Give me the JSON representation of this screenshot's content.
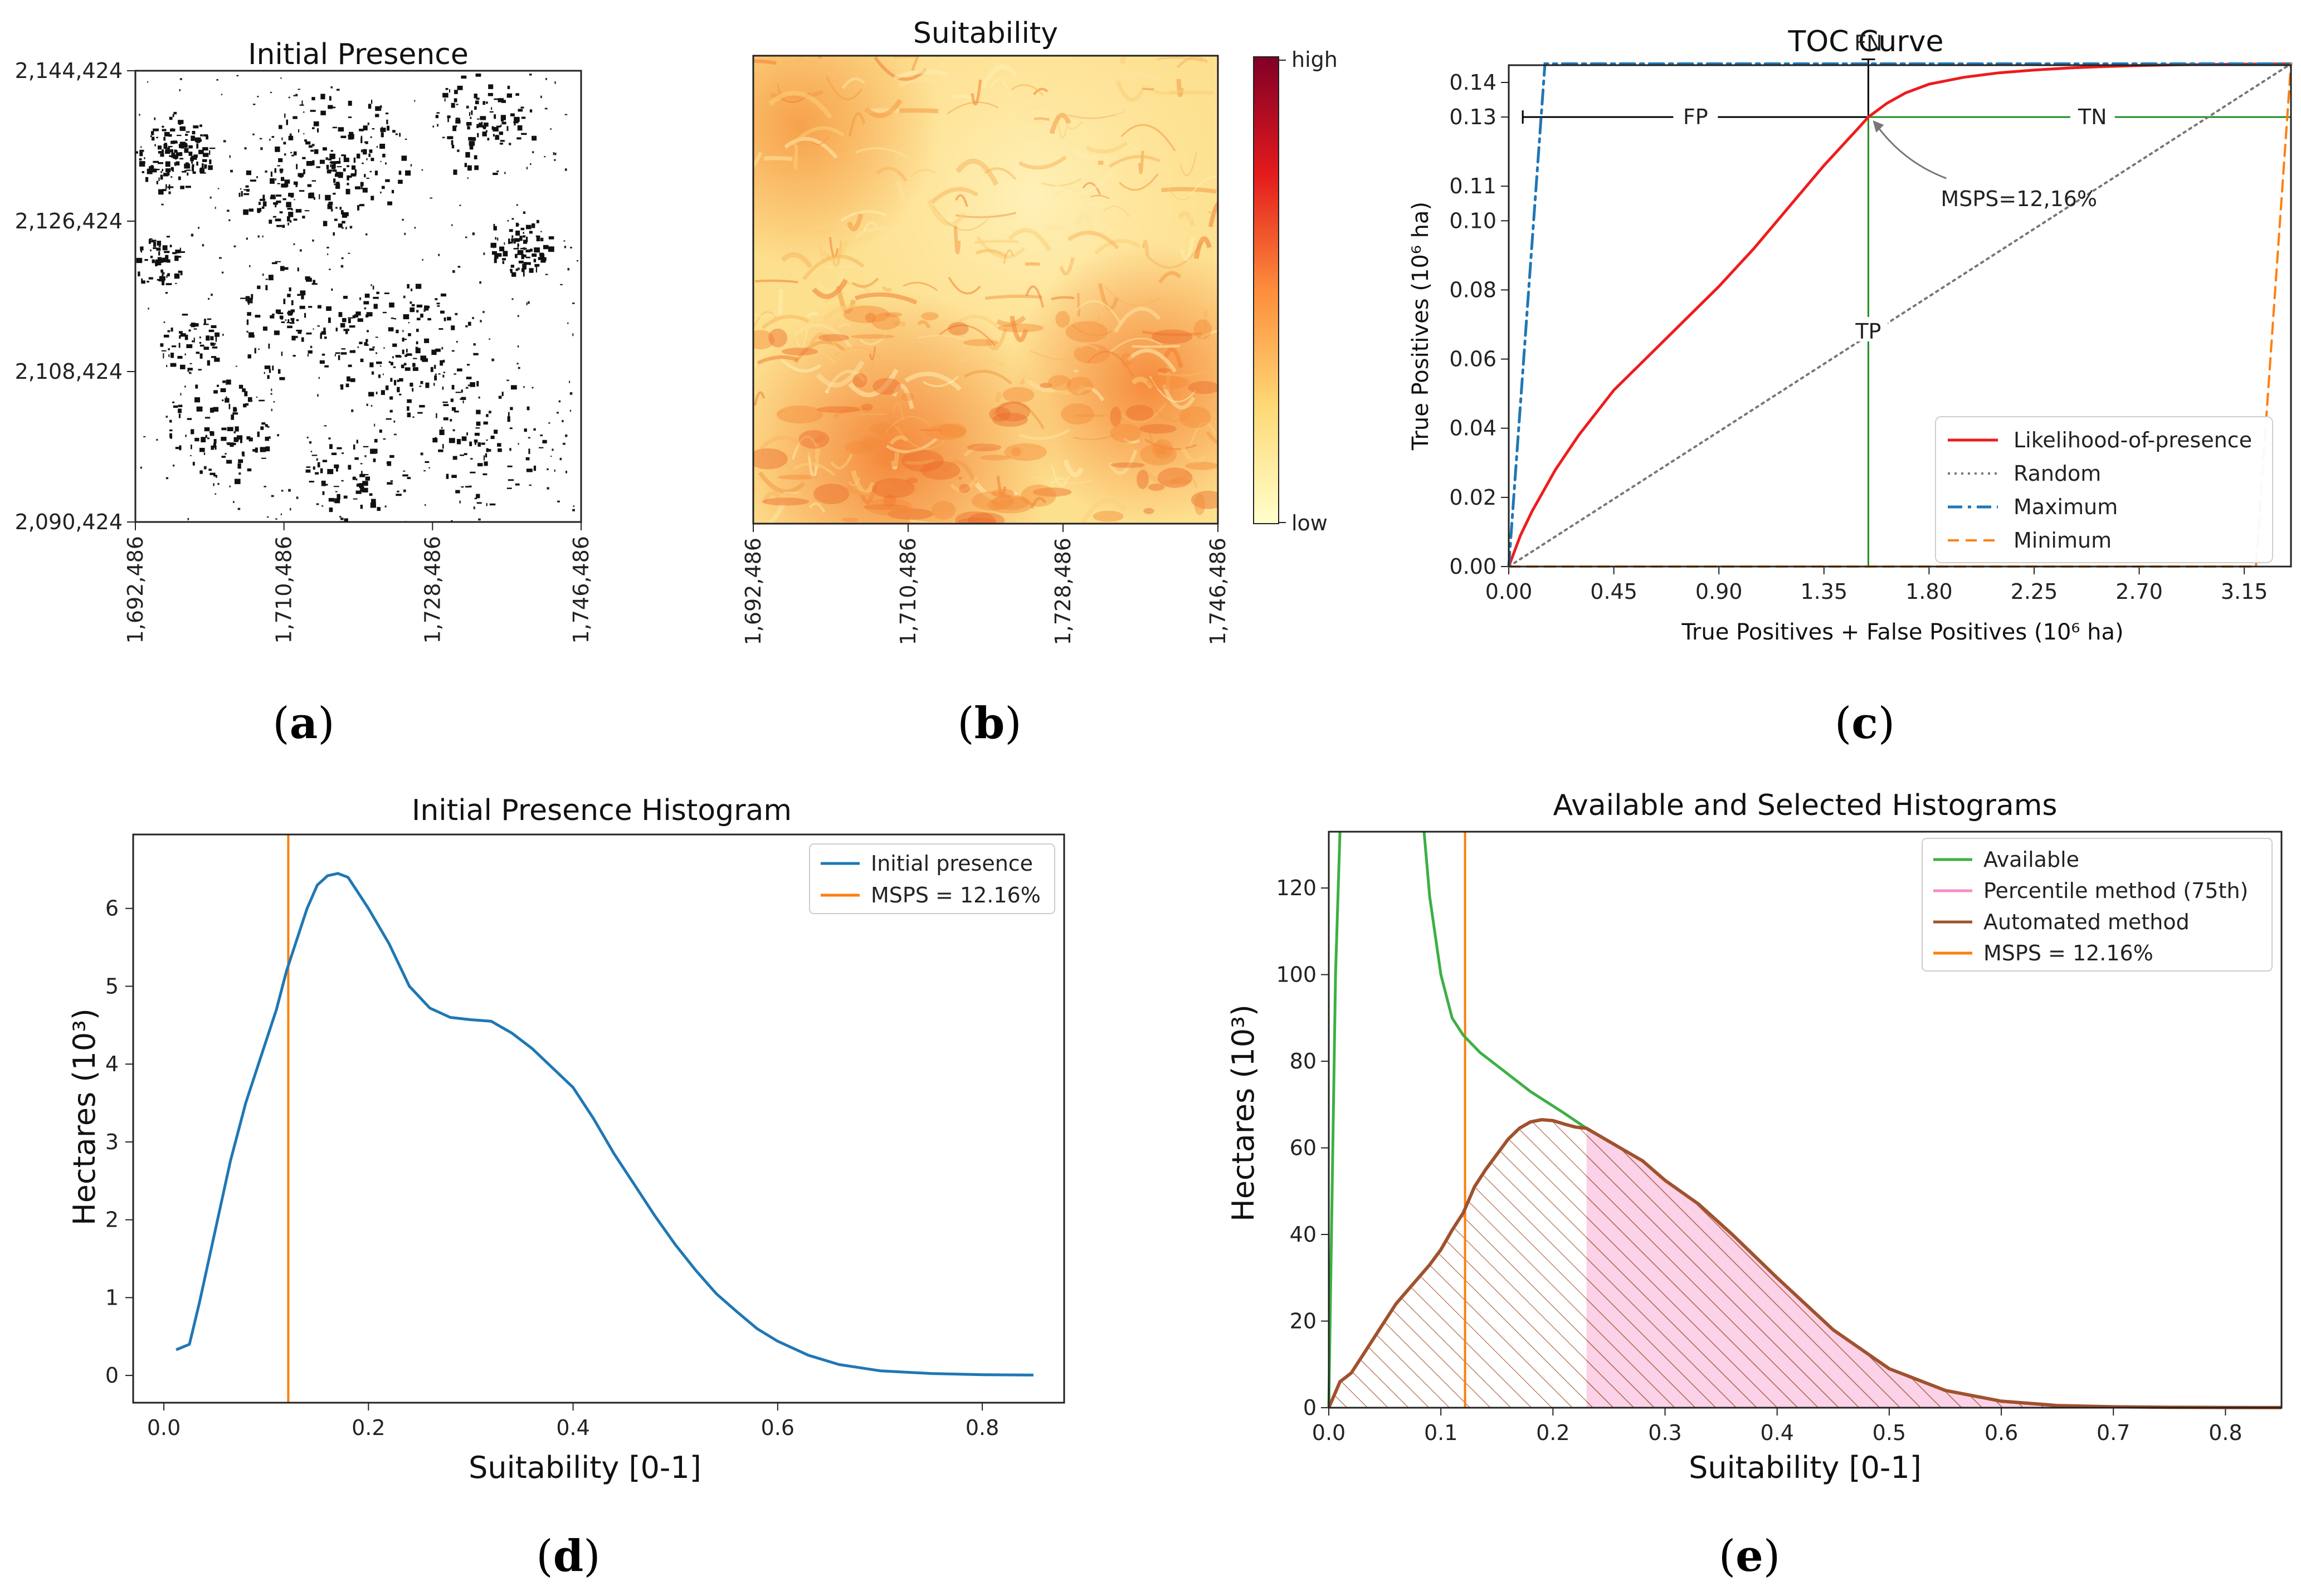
{
  "panel_labels": [
    "a",
    "b",
    "c",
    "d",
    "e"
  ],
  "colors": {
    "toc_likelihood": "#ee1c1c",
    "toc_random": "#777777",
    "toc_maximum": "#1f77b4",
    "toc_minimum": "#ff7f0e",
    "toc_annot": "#228b22",
    "hist_initial": "#1f77b4",
    "mspss": "#ff7f0e",
    "available": "#3cb043",
    "percentile": "#f48fc4",
    "automated": "#a0522d"
  },
  "chart_data": [
    {
      "type": "heatmap",
      "panel": "a",
      "title": "Initial Presence",
      "x_ticks": [
        "1,692,486",
        "1,710,486",
        "1,728,486",
        "1,746,486"
      ],
      "y_ticks": [
        "2,144,424",
        "2,126,424",
        "2,108,424",
        "2,090,424"
      ],
      "xlim": [
        1692486,
        1746486
      ],
      "ylim": [
        2090424,
        2144424
      ],
      "colormap": "binary (presence = black)"
    },
    {
      "type": "heatmap",
      "panel": "b",
      "title": "Suitability",
      "x_ticks": [
        "1,692,486",
        "1,710,486",
        "1,728,486",
        "1,746,486"
      ],
      "xlim": [
        1692486,
        1746486
      ],
      "colorbar": {
        "high_label": "high",
        "low_label": "low"
      },
      "colormap": "YlOrRd"
    },
    {
      "type": "line",
      "panel": "c",
      "title": "TOC Curve",
      "xlabel": "True Positives + False Positives (10⁶ ha)",
      "ylabel": "True Positives (10⁶ ha)",
      "xlim": [
        0,
        3.35
      ],
      "ylim": [
        0,
        0.145
      ],
      "x_ticks": [
        "0.00",
        "0.45",
        "0.90",
        "1.35",
        "1.80",
        "2.25",
        "2.70",
        "3.15"
      ],
      "y_ticks": [
        "0.00",
        "0.02",
        "0.04",
        "0.06",
        "0.08",
        "0.10",
        "0.11",
        "0.13",
        "0.14"
      ],
      "legend_position": "bottom-right",
      "series": [
        {
          "name": "Likelihood-of-presence",
          "style": "solid",
          "x": [
            0,
            0.05,
            0.1,
            0.2,
            0.3,
            0.45,
            0.6,
            0.75,
            0.9,
            1.05,
            1.2,
            1.35,
            1.5,
            1.54,
            1.62,
            1.7,
            1.8,
            1.95,
            2.1,
            2.25,
            2.4,
            2.55,
            2.7,
            2.85,
            3.0,
            3.15,
            3.35
          ],
          "y": [
            0,
            0.009,
            0.016,
            0.028,
            0.038,
            0.051,
            0.061,
            0.071,
            0.081,
            0.092,
            0.104,
            0.116,
            0.127,
            0.13,
            0.134,
            0.137,
            0.1395,
            0.1415,
            0.1428,
            0.1436,
            0.1442,
            0.1446,
            0.1449,
            0.1451,
            0.1452,
            0.1453,
            0.1454
          ]
        },
        {
          "name": "Random",
          "style": "dotted",
          "x": [
            0,
            3.35
          ],
          "y": [
            0,
            0.1454
          ]
        },
        {
          "name": "Maximum",
          "style": "dashdot",
          "x": [
            0,
            0.155,
            3.35
          ],
          "y": [
            0,
            0.1454,
            0.1454
          ]
        },
        {
          "name": "Minimum",
          "style": "dashed",
          "x": [
            0,
            3.2,
            3.35
          ],
          "y": [
            0,
            0,
            0.1454
          ]
        }
      ],
      "annotations": {
        "fp": "FP",
        "fn": "FN",
        "tn": "TN",
        "tp": "TP",
        "msps": "MSPS=12,16%",
        "threshold_point": {
          "x": 1.54,
          "y": 0.13
        }
      }
    },
    {
      "type": "line",
      "panel": "d",
      "title": "Initial Presence Histogram",
      "xlabel": "Suitability [0-1]",
      "ylabel": "Hectares (10³)",
      "xlim": [
        -0.03,
        0.88
      ],
      "ylim": [
        -0.35,
        6.95
      ],
      "x_ticks": [
        "0.0",
        "0.2",
        "0.4",
        "0.6",
        "0.8"
      ],
      "y_ticks": [
        "0",
        "1",
        "2",
        "3",
        "4",
        "5",
        "6"
      ],
      "legend_position": "top-right",
      "series": [
        {
          "name": "Initial presence",
          "x": [
            0.012,
            0.025,
            0.035,
            0.05,
            0.065,
            0.08,
            0.095,
            0.11,
            0.12,
            0.13,
            0.14,
            0.15,
            0.16,
            0.17,
            0.18,
            0.19,
            0.2,
            0.22,
            0.24,
            0.26,
            0.28,
            0.3,
            0.32,
            0.34,
            0.36,
            0.38,
            0.4,
            0.42,
            0.44,
            0.46,
            0.48,
            0.5,
            0.52,
            0.54,
            0.56,
            0.58,
            0.6,
            0.63,
            0.66,
            0.7,
            0.75,
            0.8,
            0.85
          ],
          "y": [
            0.33,
            0.4,
            0.95,
            1.85,
            2.75,
            3.5,
            4.1,
            4.7,
            5.2,
            5.6,
            6.0,
            6.3,
            6.42,
            6.45,
            6.4,
            6.2,
            6.0,
            5.55,
            5.0,
            4.72,
            4.6,
            4.57,
            4.55,
            4.4,
            4.2,
            3.95,
            3.7,
            3.3,
            2.85,
            2.45,
            2.05,
            1.68,
            1.35,
            1.05,
            0.82,
            0.6,
            0.44,
            0.26,
            0.14,
            0.06,
            0.025,
            0.01,
            0.005
          ]
        },
        {
          "name": "MSPS = 12.16%",
          "x": [
            0.1216,
            0.1216
          ],
          "y": [
            -0.35,
            6.95
          ]
        }
      ]
    },
    {
      "type": "area",
      "panel": "e",
      "title": "Available and Selected Histograms",
      "xlabel": "Suitability [0-1]",
      "ylabel": "Hectares (10³)",
      "xlim": [
        0,
        0.85
      ],
      "ylim": [
        0,
        133
      ],
      "x_ticks": [
        "0.0",
        "0.1",
        "0.2",
        "0.3",
        "0.4",
        "0.5",
        "0.6",
        "0.7",
        "0.8"
      ],
      "y_ticks": [
        "0",
        "20",
        "40",
        "60",
        "80",
        "100",
        "120"
      ],
      "legend_position": "top-right",
      "percentile_threshold": 0.23,
      "series": [
        {
          "name": "Available",
          "x": [
            0.0,
            0.003,
            0.006,
            0.01,
            0.085,
            0.09,
            0.1,
            0.11,
            0.12,
            0.135,
            0.15,
            0.18,
            0.21,
            0.23,
            0.25,
            0.28,
            0.3,
            0.33,
            0.36,
            0.4,
            0.45,
            0.5,
            0.55,
            0.6,
            0.65,
            0.7,
            0.75,
            0.8,
            0.85
          ],
          "y": [
            0,
            50,
            100,
            133,
            133,
            118,
            100,
            90,
            86,
            82,
            79,
            73,
            68,
            64.5,
            61.5,
            57,
            52.5,
            47,
            40,
            30,
            18,
            9,
            4,
            1.5,
            0.5,
            0.2,
            0.1,
            0.05,
            0.02
          ]
        },
        {
          "name": "Percentile method (75th)",
          "x_from": 0.23,
          "x_to": 0.85
        },
        {
          "name": "Automated method",
          "x": [
            0,
            0.01,
            0.02,
            0.03,
            0.04,
            0.05,
            0.06,
            0.07,
            0.08,
            0.09,
            0.1,
            0.11,
            0.12,
            0.13,
            0.14,
            0.15,
            0.16,
            0.17,
            0.18,
            0.19,
            0.2,
            0.21,
            0.22,
            0.23,
            0.25,
            0.28,
            0.3,
            0.33,
            0.36,
            0.4,
            0.45,
            0.5,
            0.55,
            0.6,
            0.65,
            0.7,
            0.75,
            0.8,
            0.85
          ],
          "y": [
            0,
            6,
            8,
            12,
            16,
            20,
            24,
            27,
            30,
            33,
            36.5,
            41,
            45,
            51,
            55,
            58.5,
            62,
            64.5,
            66,
            66.5,
            66.3,
            65.5,
            64.8,
            64.5,
            61.5,
            57,
            52.5,
            47,
            40,
            30,
            18,
            9,
            4,
            1.5,
            0.5,
            0.2,
            0.1,
            0.05,
            0.02
          ]
        },
        {
          "name": "MSPS = 12.16%",
          "x": [
            0.1216,
            0.1216
          ],
          "y": [
            0,
            133
          ]
        }
      ]
    }
  ]
}
